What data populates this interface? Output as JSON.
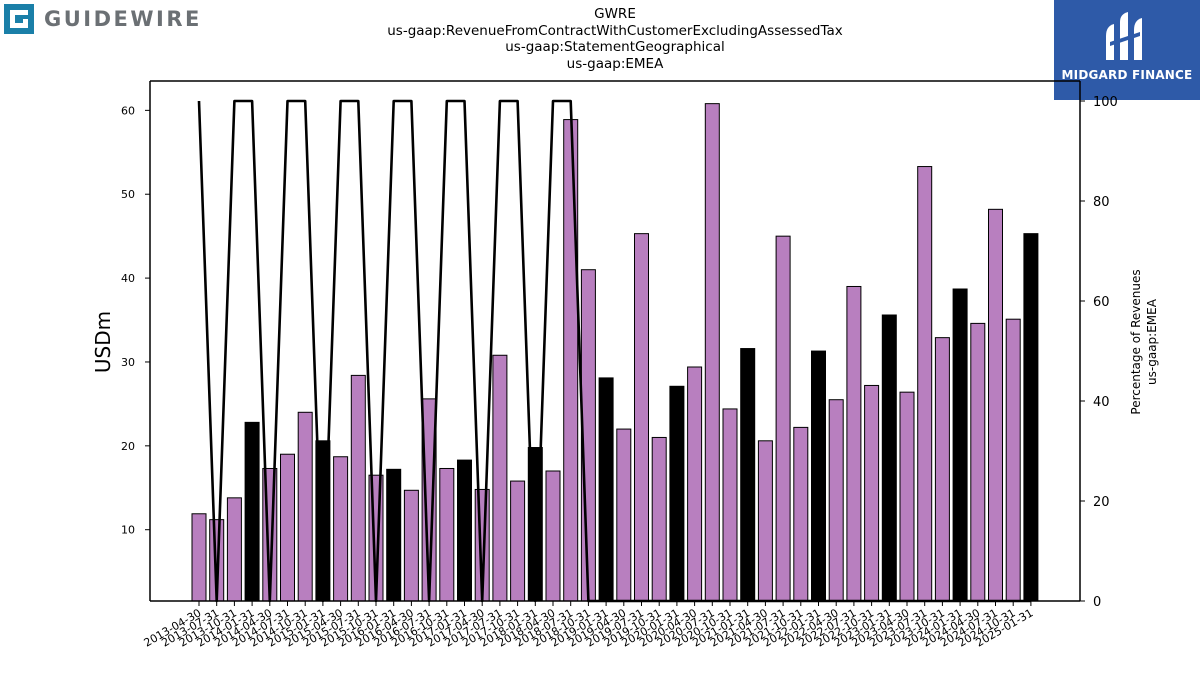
{
  "header": {
    "title_lines": [
      "GWRE",
      "us-gaap:RevenueFromContractWithCustomerExcludingAssessedTax",
      "us-gaap:StatementGeographical",
      "us-gaap:EMEA"
    ],
    "logo_left_text": "GUIDEWIRE",
    "logo_right_text": "MIDGARD FINANCE"
  },
  "chart_data": {
    "type": "bar",
    "ylabel": "USDm",
    "y2label_lines": [
      "Percentage of Revenues",
      "us-gaap:EMEA"
    ],
    "ylim": [
      1.5,
      63.5
    ],
    "y2lim": [
      0,
      104
    ],
    "yticks": [
      10,
      20,
      30,
      40,
      50,
      60
    ],
    "y2ticks": [
      0,
      20,
      40,
      60,
      80,
      100
    ],
    "categories": [
      "2013-04-30",
      "2013-07-31",
      "2013-10-31",
      "2014-01-31",
      "2014-04-30",
      "2014-07-31",
      "2014-10-31",
      "2015-01-31",
      "2015-04-30",
      "2015-07-31",
      "2015-10-31",
      "2016-01-31",
      "2016-04-30",
      "2016-07-31",
      "2016-10-31",
      "2017-01-31",
      "2017-04-30",
      "2017-07-31",
      "2017-10-31",
      "2018-01-31",
      "2018-04-30",
      "2018-07-31",
      "2018-10-31",
      "2019-01-31",
      "2019-04-30",
      "2019-07-31",
      "2019-10-31",
      "2020-01-31",
      "2020-04-30",
      "2020-07-31",
      "2020-10-31",
      "2021-01-31",
      "2021-04-30",
      "2021-07-31",
      "2021-10-31",
      "2022-01-31",
      "2022-04-30",
      "2022-07-31",
      "2022-10-31",
      "2023-01-31",
      "2023-04-30",
      "2023-07-31",
      "2023-10-31",
      "2024-01-31",
      "2024-04-30",
      "2024-07-31",
      "2024-10-31",
      "2025-01-31"
    ],
    "series": [
      {
        "type": "bar",
        "values": [
          11.9,
          11.2,
          13.8,
          22.8,
          17.3,
          19.0,
          24.0,
          20.6,
          18.7,
          28.4,
          16.5,
          17.2,
          14.7,
          25.6,
          17.3,
          18.3,
          14.8,
          30.8,
          15.8,
          19.8,
          17.0,
          58.9,
          41.0,
          28.1,
          22.0,
          45.3,
          21.0,
          27.1,
          29.4,
          60.8,
          24.4,
          31.6,
          20.6,
          45.0,
          22.2,
          31.3,
          25.5,
          39.0,
          27.2,
          35.6,
          26.4,
          53.3,
          32.9,
          38.7,
          34.6,
          48.2,
          35.1,
          45.3
        ],
        "fills": [
          "#b87fbf",
          "#b87fbf",
          "#b87fbf",
          "#000000",
          "#b87fbf",
          "#b87fbf",
          "#b87fbf",
          "#000000",
          "#b87fbf",
          "#b87fbf",
          "#b87fbf",
          "#000000",
          "#b87fbf",
          "#b87fbf",
          "#b87fbf",
          "#000000",
          "#b87fbf",
          "#b87fbf",
          "#b87fbf",
          "#000000",
          "#b87fbf",
          "#b87fbf",
          "#b87fbf",
          "#000000",
          "#b87fbf",
          "#b87fbf",
          "#b87fbf",
          "#000000",
          "#b87fbf",
          "#b87fbf",
          "#b87fbf",
          "#000000",
          "#b87fbf",
          "#b87fbf",
          "#b87fbf",
          "#000000",
          "#b87fbf",
          "#b87fbf",
          "#b87fbf",
          "#000000",
          "#b87fbf",
          "#b87fbf",
          "#b87fbf",
          "#000000",
          "#b87fbf",
          "#b87fbf",
          "#b87fbf",
          "#000000"
        ]
      },
      {
        "type": "line",
        "axis": "right",
        "values": [
          100,
          0,
          100,
          100,
          0,
          100,
          100,
          0,
          100,
          100,
          0,
          100,
          100,
          0,
          100,
          100,
          0,
          100,
          100,
          0,
          100,
          100,
          0,
          0,
          0,
          0,
          0,
          0,
          0,
          0,
          0,
          0,
          0,
          0,
          0,
          0,
          0,
          0,
          0,
          0,
          0,
          0,
          0,
          0,
          0,
          0,
          0,
          0
        ]
      }
    ],
    "colors": {
      "bar_primary": "#b87fbf",
      "bar_annual": "#000000",
      "line": "#000000"
    }
  }
}
